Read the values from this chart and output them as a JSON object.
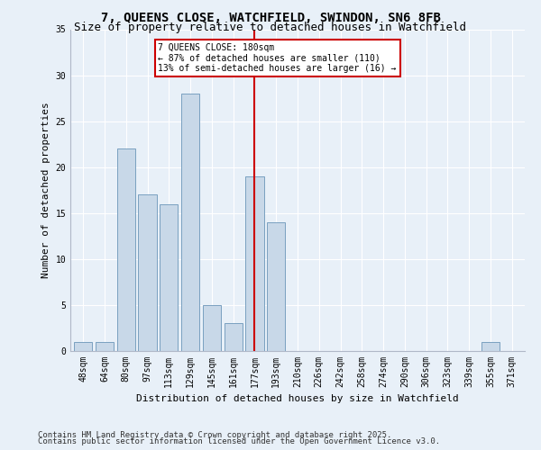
{
  "title": "7, QUEENS CLOSE, WATCHFIELD, SWINDON, SN6 8FB",
  "subtitle": "Size of property relative to detached houses in Watchfield",
  "xlabel": "Distribution of detached houses by size in Watchfield",
  "ylabel": "Number of detached properties",
  "categories": [
    "48sqm",
    "64sqm",
    "80sqm",
    "97sqm",
    "113sqm",
    "129sqm",
    "145sqm",
    "161sqm",
    "177sqm",
    "193sqm",
    "210sqm",
    "226sqm",
    "242sqm",
    "258sqm",
    "274sqm",
    "290sqm",
    "306sqm",
    "323sqm",
    "339sqm",
    "355sqm",
    "371sqm"
  ],
  "values": [
    1,
    1,
    22,
    17,
    16,
    28,
    5,
    3,
    19,
    14,
    0,
    0,
    0,
    0,
    0,
    0,
    0,
    0,
    0,
    1,
    0
  ],
  "bar_color": "#c8d8e8",
  "bar_edge_color": "#7aa0c0",
  "marker_index": 8,
  "marker_label": "7 QUEENS CLOSE: 180sqm",
  "annotation_line1": "← 87% of detached houses are smaller (110)",
  "annotation_line2": "13% of semi-detached houses are larger (16) →",
  "annotation_box_color": "#cc0000",
  "marker_line_color": "#cc0000",
  "ylim": [
    0,
    35
  ],
  "yticks": [
    0,
    5,
    10,
    15,
    20,
    25,
    30,
    35
  ],
  "footnote1": "Contains HM Land Registry data © Crown copyright and database right 2025.",
  "footnote2": "Contains public sector information licensed under the Open Government Licence v3.0.",
  "background_color": "#e8f0f8",
  "title_fontsize": 10,
  "subtitle_fontsize": 9,
  "tick_fontsize": 7,
  "ylabel_fontsize": 8,
  "xlabel_fontsize": 8,
  "footnote_fontsize": 6.5
}
